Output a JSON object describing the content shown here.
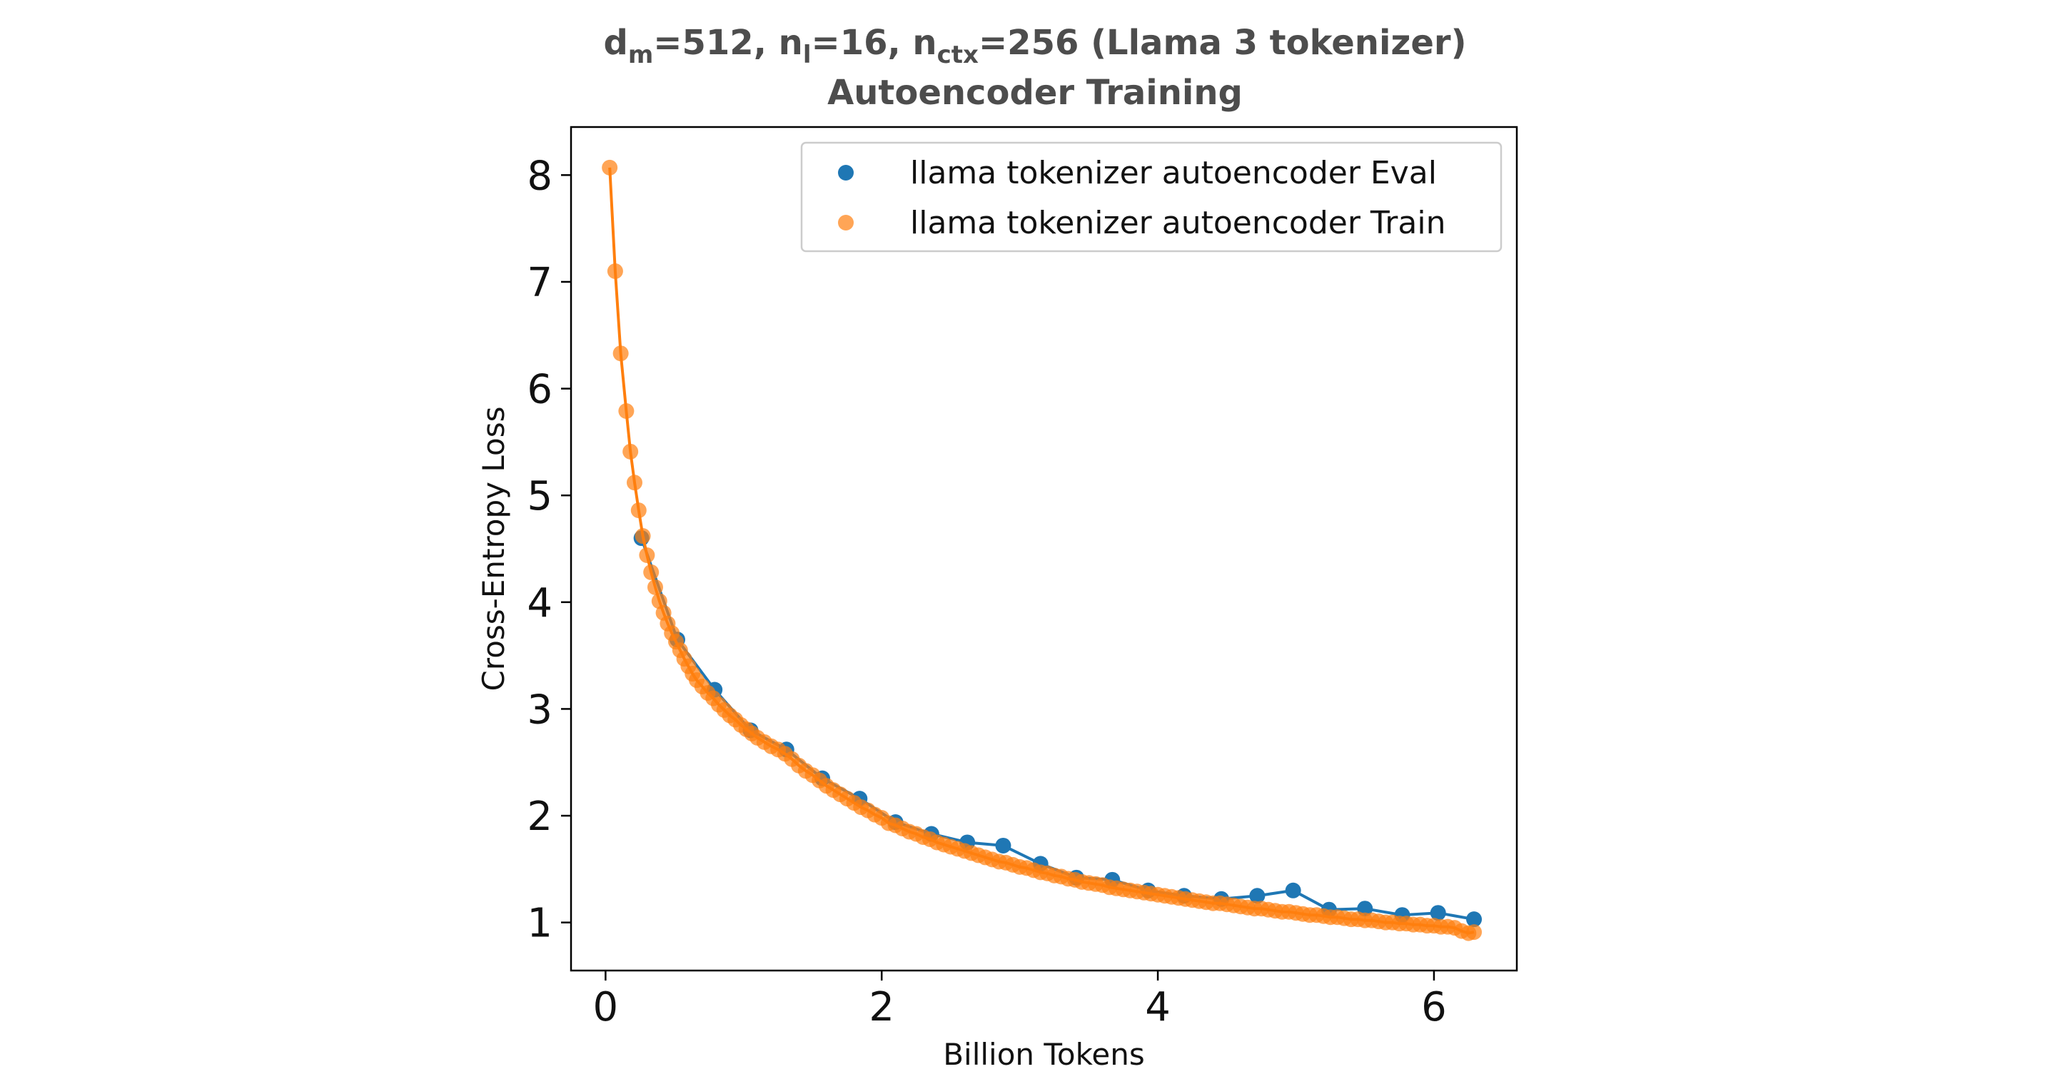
{
  "chart_data": {
    "type": "scatter",
    "title_line1": {
      "parts": [
        {
          "text": "d",
          "sub": "m"
        },
        {
          "text": "=512, n",
          "sub": "l"
        },
        {
          "text": "=16, n",
          "sub": "ctx"
        },
        {
          "text": "=256 (Llama 3 tokenizer)",
          "sub": ""
        }
      ]
    },
    "title_line2": "Autoencoder Training",
    "xlabel": "Billion Tokens",
    "ylabel": "Cross-Entropy Loss",
    "xlim": [
      -0.25,
      6.6
    ],
    "ylim": [
      0.55,
      8.45
    ],
    "xticks": [
      0,
      2,
      4,
      6
    ],
    "yticks": [
      1,
      2,
      3,
      4,
      5,
      6,
      7,
      8
    ],
    "grid": false,
    "legend_position": "top-right",
    "series": [
      {
        "name": "llama tokenizer autoencoder Eval",
        "color": "#1f77b4",
        "marker_alpha": 1.0,
        "x": [
          0.26,
          0.52,
          0.79,
          1.05,
          1.31,
          1.57,
          1.84,
          2.1,
          2.36,
          2.62,
          2.88,
          3.15,
          3.41,
          3.67,
          3.93,
          4.19,
          4.46,
          4.72,
          4.98,
          5.24,
          5.5,
          5.77,
          6.03,
          6.29
        ],
        "y": [
          4.6,
          3.65,
          3.18,
          2.8,
          2.62,
          2.35,
          2.16,
          1.94,
          1.83,
          1.75,
          1.72,
          1.55,
          1.42,
          1.4,
          1.3,
          1.25,
          1.22,
          1.25,
          1.3,
          1.12,
          1.13,
          1.07,
          1.09,
          1.03
        ]
      },
      {
        "name": "llama tokenizer autoencoder Train",
        "color": "#ff7f0e",
        "marker_alpha": 0.7,
        "x": [
          0.03,
          0.07,
          0.11,
          0.15,
          0.18,
          0.21,
          0.24,
          0.27,
          0.3,
          0.33,
          0.36,
          0.39,
          0.42,
          0.45,
          0.48,
          0.51,
          0.54,
          0.57,
          0.6,
          0.63,
          0.66,
          0.7,
          0.74,
          0.78,
          0.82,
          0.86,
          0.9,
          0.94,
          0.98,
          1.02,
          1.06,
          1.1,
          1.15,
          1.2,
          1.25,
          1.3,
          1.35,
          1.4,
          1.45,
          1.5,
          1.55,
          1.6,
          1.65,
          1.7,
          1.75,
          1.8,
          1.85,
          1.9,
          1.95,
          2.0,
          2.05,
          2.1,
          2.15,
          2.2,
          2.25,
          2.3,
          2.35,
          2.4,
          2.45,
          2.5,
          2.55,
          2.6,
          2.65,
          2.7,
          2.75,
          2.8,
          2.85,
          2.9,
          2.95,
          3.0,
          3.05,
          3.1,
          3.15,
          3.2,
          3.25,
          3.3,
          3.35,
          3.4,
          3.45,
          3.5,
          3.55,
          3.6,
          3.65,
          3.7,
          3.75,
          3.8,
          3.85,
          3.9,
          3.95,
          4.0,
          4.05,
          4.1,
          4.15,
          4.2,
          4.25,
          4.3,
          4.35,
          4.4,
          4.45,
          4.5,
          4.55,
          4.6,
          4.65,
          4.7,
          4.75,
          4.8,
          4.85,
          4.9,
          4.95,
          5.0,
          5.05,
          5.1,
          5.15,
          5.2,
          5.25,
          5.3,
          5.35,
          5.4,
          5.45,
          5.5,
          5.55,
          5.6,
          5.65,
          5.7,
          5.75,
          5.8,
          5.85,
          5.9,
          5.95,
          6.0,
          6.05,
          6.1,
          6.15,
          6.2,
          6.25,
          6.29
        ],
        "y": [
          8.07,
          7.1,
          6.33,
          5.79,
          5.41,
          5.12,
          4.86,
          4.62,
          4.44,
          4.28,
          4.14,
          4.01,
          3.9,
          3.8,
          3.71,
          3.63,
          3.55,
          3.47,
          3.4,
          3.33,
          3.27,
          3.21,
          3.15,
          3.1,
          3.04,
          2.99,
          2.94,
          2.9,
          2.85,
          2.81,
          2.77,
          2.73,
          2.69,
          2.65,
          2.62,
          2.58,
          2.53,
          2.47,
          2.42,
          2.38,
          2.33,
          2.28,
          2.24,
          2.2,
          2.16,
          2.12,
          2.08,
          2.05,
          2.01,
          1.98,
          1.93,
          1.91,
          1.88,
          1.85,
          1.83,
          1.8,
          1.78,
          1.75,
          1.73,
          1.71,
          1.69,
          1.67,
          1.65,
          1.63,
          1.61,
          1.59,
          1.57,
          1.56,
          1.54,
          1.52,
          1.51,
          1.49,
          1.47,
          1.46,
          1.44,
          1.43,
          1.41,
          1.4,
          1.38,
          1.37,
          1.36,
          1.35,
          1.33,
          1.32,
          1.31,
          1.3,
          1.29,
          1.28,
          1.27,
          1.26,
          1.25,
          1.24,
          1.23,
          1.22,
          1.21,
          1.2,
          1.19,
          1.18,
          1.18,
          1.17,
          1.16,
          1.15,
          1.14,
          1.13,
          1.13,
          1.12,
          1.11,
          1.1,
          1.1,
          1.09,
          1.08,
          1.07,
          1.07,
          1.06,
          1.05,
          1.05,
          1.04,
          1.03,
          1.03,
          1.02,
          1.02,
          1.01,
          1.0,
          1.0,
          0.99,
          0.99,
          0.98,
          0.98,
          0.97,
          0.97,
          0.96,
          0.96,
          0.95,
          0.92,
          0.9,
          0.91
        ]
      }
    ]
  }
}
